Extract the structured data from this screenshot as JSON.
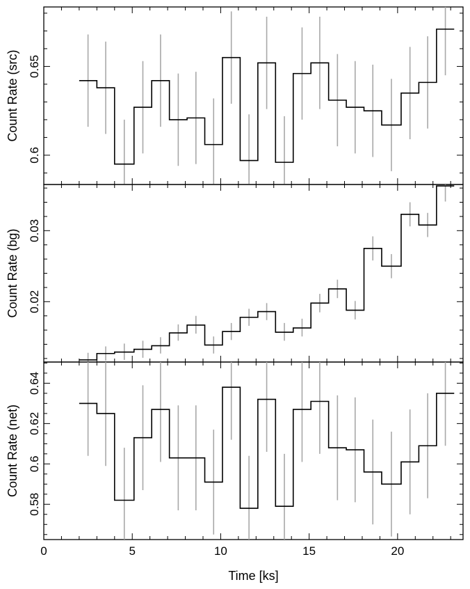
{
  "chart_data": [
    {
      "type": "line",
      "ylabel": "Count Rate (src)",
      "xlim": [
        0,
        23.7
      ],
      "ylim": [
        0.5835,
        0.6835
      ],
      "yticks": [
        "0.6",
        "0.65"
      ],
      "ytick_values": [
        0.6,
        0.65
      ],
      "ytick_minor": 0.01,
      "series": [
        {
          "bins": [
            [
              2.0,
              3.0
            ],
            [
              3.0,
              4.0
            ],
            [
              4.0,
              5.1
            ],
            [
              5.1,
              6.1
            ],
            [
              6.1,
              7.1
            ],
            [
              7.1,
              8.1
            ],
            [
              8.1,
              9.1
            ],
            [
              9.1,
              10.1
            ],
            [
              10.1,
              11.1
            ],
            [
              11.1,
              12.1
            ],
            [
              12.1,
              13.1
            ],
            [
              13.1,
              14.1
            ],
            [
              14.1,
              15.1
            ],
            [
              15.1,
              16.1
            ],
            [
              16.1,
              17.1
            ],
            [
              17.1,
              18.1
            ],
            [
              18.1,
              19.1
            ],
            [
              19.1,
              20.2
            ],
            [
              20.2,
              21.2
            ],
            [
              21.2,
              22.2
            ],
            [
              22.2,
              23.2
            ]
          ],
          "values": [
            0.642,
            0.638,
            0.595,
            0.627,
            0.642,
            0.62,
            0.621,
            0.606,
            0.655,
            0.597,
            0.652,
            0.596,
            0.646,
            0.652,
            0.631,
            0.627,
            0.625,
            0.617,
            0.635,
            0.641,
            0.671
          ],
          "err_low": [
            0.616,
            0.612,
            0.57,
            0.601,
            0.616,
            0.594,
            0.595,
            0.58,
            0.629,
            0.571,
            0.626,
            0.57,
            0.62,
            0.626,
            0.605,
            0.601,
            0.599,
            0.591,
            0.609,
            0.615,
            0.645
          ],
          "err_high": [
            0.668,
            0.664,
            0.62,
            0.653,
            0.668,
            0.646,
            0.647,
            0.632,
            0.681,
            0.623,
            0.678,
            0.622,
            0.672,
            0.678,
            0.657,
            0.653,
            0.651,
            0.643,
            0.661,
            0.667,
            0.697
          ]
        }
      ]
    },
    {
      "type": "line",
      "ylabel": "Count Rate (bg)",
      "xlim": [
        0,
        23.7
      ],
      "ylim": [
        0.0115,
        0.0365
      ],
      "yticks": [
        "0.02",
        "0.03"
      ],
      "ytick_values": [
        0.02,
        0.03
      ],
      "ytick_minor": 0.002,
      "series": [
        {
          "bins": [
            [
              2.0,
              3.0
            ],
            [
              3.0,
              4.0
            ],
            [
              4.0,
              5.1
            ],
            [
              5.1,
              6.1
            ],
            [
              6.1,
              7.1
            ],
            [
              7.1,
              8.1
            ],
            [
              8.1,
              9.1
            ],
            [
              9.1,
              10.1
            ],
            [
              10.1,
              11.1
            ],
            [
              11.1,
              12.1
            ],
            [
              12.1,
              13.1
            ],
            [
              13.1,
              14.1
            ],
            [
              14.1,
              15.1
            ],
            [
              15.1,
              16.1
            ],
            [
              16.1,
              17.1
            ],
            [
              17.1,
              18.1
            ],
            [
              18.1,
              19.1
            ],
            [
              19.1,
              20.2
            ],
            [
              20.2,
              21.2
            ],
            [
              21.2,
              22.2
            ],
            [
              22.2,
              23.2
            ]
          ],
          "values": [
            0.0118,
            0.0127,
            0.0129,
            0.0133,
            0.0138,
            0.0156,
            0.0167,
            0.0139,
            0.0158,
            0.0178,
            0.0186,
            0.0157,
            0.0163,
            0.0198,
            0.0218,
            0.0188,
            0.0275,
            0.025,
            0.0323,
            0.0308,
            0.0363
          ],
          "err_low": [
            0.0108,
            0.0117,
            0.0118,
            0.0121,
            0.0127,
            0.0145,
            0.0155,
            0.0127,
            0.0146,
            0.0166,
            0.0174,
            0.0145,
            0.0151,
            0.0185,
            0.0205,
            0.0175,
            0.0258,
            0.0233,
            0.0306,
            0.0291,
            0.0341
          ],
          "err_high": [
            0.0128,
            0.0137,
            0.0141,
            0.0145,
            0.015,
            0.0168,
            0.018,
            0.0151,
            0.017,
            0.019,
            0.0198,
            0.017,
            0.0176,
            0.0211,
            0.0231,
            0.0201,
            0.0292,
            0.0267,
            0.034,
            0.0325,
            0.0385
          ]
        }
      ]
    },
    {
      "type": "line",
      "xlabel": "Time [ks]",
      "ylabel": "Count Rate (net)",
      "xlim": [
        0,
        23.7
      ],
      "xticks": [
        "0",
        "5",
        "10",
        "15",
        "20"
      ],
      "xtick_values": [
        0,
        5,
        10,
        15,
        20
      ],
      "xtick_minor": 1,
      "ylim": [
        0.5625,
        0.6505
      ],
      "yticks": [
        "0.58",
        "0.6",
        "0.62",
        "0.64"
      ],
      "ytick_values": [
        0.58,
        0.6,
        0.62,
        0.64
      ],
      "ytick_minor": 0.005,
      "series": [
        {
          "bins": [
            [
              2.0,
              3.0
            ],
            [
              3.0,
              4.0
            ],
            [
              4.0,
              5.1
            ],
            [
              5.1,
              6.1
            ],
            [
              6.1,
              7.1
            ],
            [
              7.1,
              8.1
            ],
            [
              8.1,
              9.1
            ],
            [
              9.1,
              10.1
            ],
            [
              10.1,
              11.1
            ],
            [
              11.1,
              12.1
            ],
            [
              12.1,
              13.1
            ],
            [
              13.1,
              14.1
            ],
            [
              14.1,
              15.1
            ],
            [
              15.1,
              16.1
            ],
            [
              16.1,
              17.1
            ],
            [
              17.1,
              18.1
            ],
            [
              18.1,
              19.1
            ],
            [
              19.1,
              20.2
            ],
            [
              20.2,
              21.2
            ],
            [
              21.2,
              22.2
            ],
            [
              22.2,
              23.2
            ]
          ],
          "values": [
            0.63,
            0.625,
            0.582,
            0.613,
            0.627,
            0.603,
            0.603,
            0.591,
            0.638,
            0.578,
            0.632,
            0.579,
            0.627,
            0.631,
            0.608,
            0.607,
            0.596,
            0.59,
            0.601,
            0.609,
            0.635
          ],
          "err_low": [
            0.604,
            0.599,
            0.556,
            0.587,
            0.601,
            0.577,
            0.577,
            0.565,
            0.612,
            0.552,
            0.606,
            0.553,
            0.601,
            0.605,
            0.582,
            0.581,
            0.57,
            0.564,
            0.575,
            0.583,
            0.609
          ],
          "err_high": [
            0.656,
            0.651,
            0.608,
            0.639,
            0.653,
            0.629,
            0.629,
            0.617,
            0.664,
            0.604,
            0.658,
            0.605,
            0.653,
            0.657,
            0.634,
            0.633,
            0.622,
            0.616,
            0.627,
            0.635,
            0.661
          ]
        }
      ]
    }
  ]
}
